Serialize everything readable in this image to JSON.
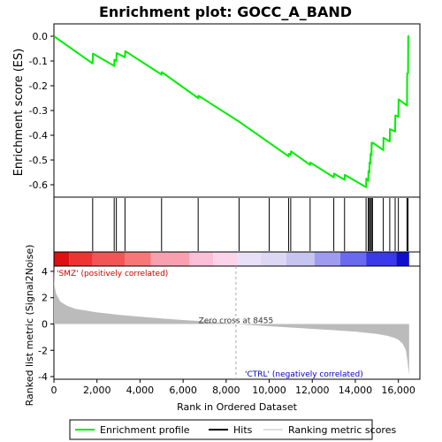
{
  "chart_data": {
    "type": "line",
    "title": "Enrichment plot: GOCC_A_BAND",
    "colors": {
      "es_line": "#00ee00",
      "hits": "#000000",
      "metric_fill": "#bbbbbb",
      "zero_line": "#aaaaaa",
      "pos_label": "#cc0000",
      "neg_label": "#0000cc"
    },
    "top_panel": {
      "ylabel": "Enrichment score (ES)",
      "ylim": [
        -0.65,
        0.05
      ],
      "yticks": [
        "0.0",
        "-0.1",
        "-0.2",
        "-0.3",
        "-0.4",
        "-0.5",
        "-0.6"
      ],
      "ytick_values": [
        0.0,
        -0.1,
        -0.2,
        -0.3,
        -0.4,
        -0.5,
        -0.6
      ],
      "xlim": [
        0,
        17000
      ],
      "es_profile": {
        "x": [
          0,
          1800,
          1810,
          2800,
          2810,
          2900,
          2910,
          3300,
          3310,
          5000,
          5010,
          6700,
          6710,
          8600,
          10000,
          10900,
          10910,
          11000,
          11010,
          11900,
          11910,
          13000,
          13010,
          13500,
          13510,
          14500,
          14510,
          14600,
          14610,
          14650,
          14660,
          14700,
          14710,
          14750,
          14760,
          14800,
          14810,
          15300,
          15310,
          15600,
          15610,
          15850,
          15860,
          16000,
          16010,
          16400,
          16410,
          16450,
          16460,
          16500
        ],
        "y": [
          0.0,
          -0.11,
          -0.07,
          -0.12,
          -0.095,
          -0.1,
          -0.068,
          -0.085,
          -0.06,
          -0.155,
          -0.145,
          -0.25,
          -0.24,
          -0.345,
          -0.43,
          -0.485,
          -0.475,
          -0.48,
          -0.465,
          -0.52,
          -0.51,
          -0.57,
          -0.555,
          -0.58,
          -0.56,
          -0.61,
          -0.575,
          -0.585,
          -0.545,
          -0.55,
          -0.51,
          -0.515,
          -0.475,
          -0.48,
          -0.43,
          -0.435,
          -0.43,
          -0.46,
          -0.41,
          -0.425,
          -0.375,
          -0.385,
          -0.32,
          -0.325,
          -0.255,
          -0.28,
          -0.15,
          -0.15,
          0.0,
          0.0
        ]
      }
    },
    "hits_panel": {
      "positions": [
        1800,
        2800,
        2900,
        3300,
        5000,
        6700,
        8600,
        10000,
        10900,
        11000,
        11900,
        13000,
        13500,
        14500,
        14600,
        14650,
        14700,
        14750,
        14800,
        15300,
        15600,
        15850,
        16000,
        16400,
        16450
      ]
    },
    "ranking_panel": {
      "ylabel": "Ranked list metric (Signal2Noise)",
      "xlabel": "Rank in Ordered Dataset",
      "ylim": [
        -4.2,
        4.4
      ],
      "yticks": [
        "4",
        "2",
        "0",
        "-2",
        "-4"
      ],
      "ytick_values": [
        4,
        2,
        0,
        -2,
        -4
      ],
      "xticks": [
        "0",
        "2,000",
        "4,000",
        "6,000",
        "8,000",
        "10,000",
        "12,000",
        "14,000",
        "16,000"
      ],
      "xtick_values": [
        0,
        2000,
        4000,
        6000,
        8000,
        10000,
        12000,
        14000,
        16000
      ],
      "metric_curve": {
        "x": [
          0,
          20,
          100,
          300,
          600,
          1000,
          2000,
          3000,
          4000,
          5000,
          6000,
          7000,
          8000,
          8455,
          9000,
          10000,
          11000,
          12000,
          13000,
          14000,
          15000,
          15500,
          15800,
          16000,
          16200,
          16350,
          16420,
          16480,
          16500
        ],
        "y": [
          4.3,
          3.0,
          2.3,
          1.7,
          1.4,
          1.15,
          0.88,
          0.7,
          0.55,
          0.42,
          0.3,
          0.2,
          0.08,
          0.0,
          -0.07,
          -0.17,
          -0.27,
          -0.37,
          -0.47,
          -0.58,
          -0.75,
          -0.9,
          -1.05,
          -1.2,
          -1.5,
          -2.0,
          -2.8,
          -3.6,
          -3.9
        ]
      },
      "zero_cross_rank": 8455,
      "zero_cross_label": "Zero cross at 8455",
      "pos_label": "'SMZ' (positively correlated)",
      "neg_label": "'CTRL' (negatively correlated)"
    },
    "legend": {
      "placement": "bottom",
      "entries": [
        "Enrichment profile",
        "Hits",
        "Ranking metric scores"
      ]
    }
  }
}
